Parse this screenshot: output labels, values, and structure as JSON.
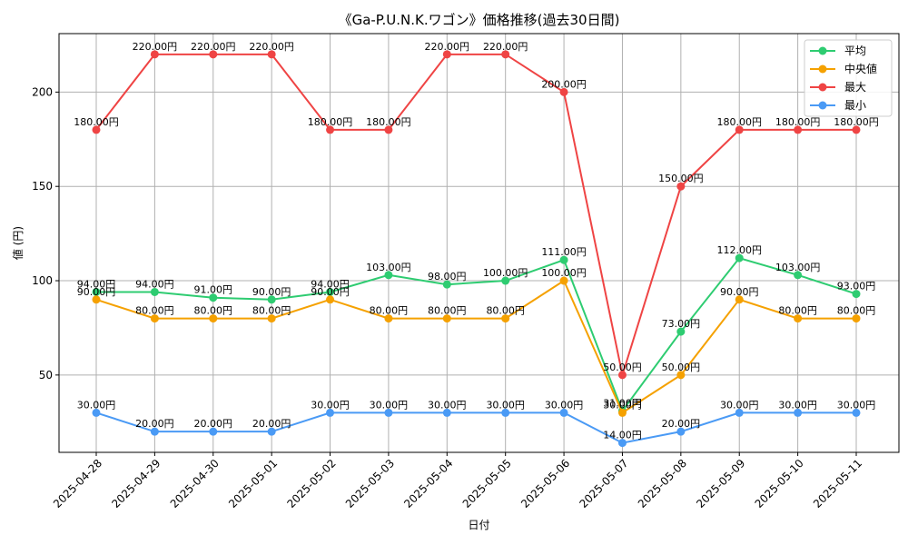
{
  "chart_data": {
    "type": "line",
    "title": "《Ga-P.U.N.K.ワゴン》価格推移(過去30日間)",
    "xlabel": "日付",
    "ylabel": "値 (円)",
    "ylim": [
      9,
      231
    ],
    "yticks": [
      50,
      100,
      150,
      200
    ],
    "grid": true,
    "legend_position": "top-right",
    "value_suffix": "円",
    "categories": [
      "2025-04-28",
      "2025-04-29",
      "2025-04-30",
      "2025-05-01",
      "2025-05-02",
      "2025-05-03",
      "2025-05-04",
      "2025-05-05",
      "2025-05-06",
      "2025-05-07",
      "2025-05-08",
      "2025-05-09",
      "2025-05-10",
      "2025-05-11"
    ],
    "series": [
      {
        "name": "平均",
        "color": "#2ecc71",
        "values": [
          94,
          94,
          91,
          90,
          94,
          103,
          98,
          100,
          111,
          31,
          73,
          112,
          103,
          93
        ]
      },
      {
        "name": "中央値",
        "color": "#f5a100",
        "values": [
          90,
          80,
          80,
          80,
          90,
          80,
          80,
          80,
          100,
          30,
          50,
          90,
          80,
          80
        ]
      },
      {
        "name": "最大",
        "color": "#ef4444",
        "values": [
          180,
          220,
          220,
          220,
          180,
          180,
          220,
          220,
          200,
          50,
          150,
          180,
          180,
          180
        ]
      },
      {
        "name": "最小",
        "color": "#4a9af5",
        "values": [
          30,
          20,
          20,
          20,
          30,
          30,
          30,
          30,
          30,
          14,
          20,
          30,
          30,
          30
        ]
      }
    ]
  }
}
